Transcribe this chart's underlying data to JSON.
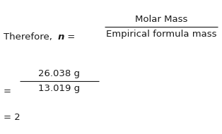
{
  "bg_color": "#ffffff",
  "text_color": "#1a1a1a",
  "therefore_text": "Therefore, ",
  "n_text": "n",
  "equals1": " = ",
  "molar_mass_label": "Molar Mass",
  "empirical_label": "Empirical formula mass",
  "numerator": "26.038 g",
  "denominator": "13.019 g",
  "result": "= 2",
  "font_size_main": 9.5,
  "font_size_result": 9.5
}
